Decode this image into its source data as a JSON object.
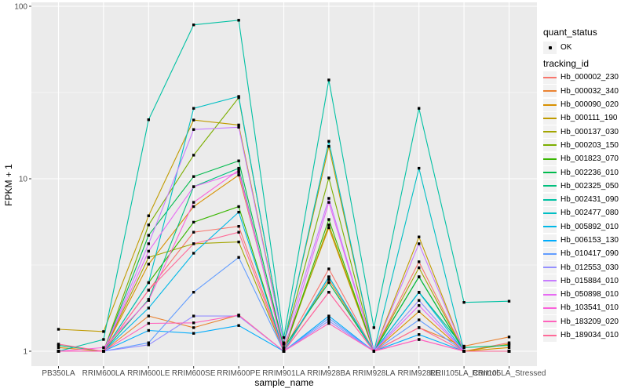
{
  "figure": {
    "background": "#FFFFFF",
    "panel_background": "#EBEBEB",
    "grid_color": "#FFFFFF",
    "point_color": "#000000",
    "axis_text_color": "#4D4D4D",
    "tick_color": "#333333"
  },
  "legend": {
    "quant_status_title": "quant_status",
    "quant_status_items": [
      {
        "label": "OK",
        "symbol": "black-point"
      }
    ],
    "tracking_id_title": "tracking_id"
  },
  "chart_data": {
    "type": "line",
    "title": "",
    "xlabel": "sample_name",
    "ylabel": "FPKM + 1",
    "y_scale": "log10",
    "ylim": [
      1,
      100
    ],
    "y_ticks": [
      1,
      10,
      100
    ],
    "y_minor_ticks": [
      3.162,
      31.62
    ],
    "grid": true,
    "legend_position": "right",
    "point_shape": "filled-square",
    "categories": [
      "PB350LA",
      "RRIM600LA",
      "RRIM600LE",
      "RRIM600SE",
      "RRIM600PE",
      "RRIM901LA",
      "RRIM928BA",
      "RRIM928LA",
      "RRIM928LE",
      "RRII105LA_Control",
      "RRII105LA_Stressed"
    ],
    "series": [
      {
        "name": "Hb_000002_230",
        "color": "#F8766D",
        "values": [
          1,
          1,
          2.26,
          4.9,
          5.3,
          1.02,
          3.0,
          1,
          3.3,
          1,
          1.12
        ]
      },
      {
        "name": "Hb_000032_340",
        "color": "#EA8331",
        "values": [
          1,
          1,
          1.6,
          1.37,
          1.62,
          1,
          2.6,
          1,
          1.37,
          1.07,
          1.21
        ]
      },
      {
        "name": "Hb_000090_020",
        "color": "#D89000",
        "values": [
          1.05,
          1,
          3.2,
          6.9,
          10.5,
          1.05,
          5.2,
          1,
          1.7,
          1,
          1.05
        ]
      },
      {
        "name": "Hb_000111_190",
        "color": "#C09B00",
        "values": [
          1.34,
          1.3,
          6.1,
          21.9,
          20.5,
          1.12,
          15.4,
          1,
          4.6,
          1,
          1.1
        ]
      },
      {
        "name": "Hb_000137_030",
        "color": "#A3A500",
        "values": [
          1,
          1,
          3.5,
          4.2,
          4.3,
          1,
          5.4,
          1,
          3.05,
          1,
          1
        ]
      },
      {
        "name": "Hb_000203_150",
        "color": "#7CAE00",
        "values": [
          1,
          1,
          5.4,
          13.7,
          29.5,
          1.1,
          10.1,
          1,
          2.7,
          1,
          1
        ]
      },
      {
        "name": "Hb_001823_070",
        "color": "#39B600",
        "values": [
          1,
          1,
          2.5,
          5.6,
          6.9,
          1,
          5.8,
          1,
          2.7,
          1,
          1
        ]
      },
      {
        "name": "Hb_002236_010",
        "color": "#00BB4E",
        "values": [
          1,
          1,
          4.7,
          10.3,
          12.7,
          1.05,
          2.5,
          1,
          2.7,
          1,
          1
        ]
      },
      {
        "name": "Hb_002325_050",
        "color": "#00BF7D",
        "values": [
          1.08,
          1,
          2.0,
          9.0,
          11.5,
          1,
          2.7,
          1,
          2.2,
          1.05,
          1.08
        ]
      },
      {
        "name": "Hb_002431_090",
        "color": "#00C1A3",
        "values": [
          1,
          1.17,
          22,
          78,
          83,
          1.2,
          37.4,
          1.37,
          25.6,
          1.92,
          1.95
        ]
      },
      {
        "name": "Hb_002477_080",
        "color": "#00BFC4",
        "values": [
          1,
          1,
          2.5,
          25.6,
          30,
          1.1,
          16.5,
          1,
          11.5,
          1,
          1
        ]
      },
      {
        "name": "Hb_005892_010",
        "color": "#00B8E7",
        "values": [
          1,
          1,
          1.78,
          3.7,
          6.4,
          1,
          2.7,
          1,
          2.19,
          1,
          1
        ]
      },
      {
        "name": "Hb_006153_130",
        "color": "#00ACFC",
        "values": [
          1,
          1,
          1.32,
          1.27,
          1.41,
          1,
          1.6,
          1,
          1.25,
          1,
          1
        ]
      },
      {
        "name": "Hb_010417_090",
        "color": "#619CFF",
        "values": [
          1,
          1,
          1.12,
          2.2,
          3.5,
          1,
          1.55,
          1,
          1.52,
          1,
          1
        ]
      },
      {
        "name": "Hb_012553_030",
        "color": "#9590FF",
        "values": [
          1,
          1,
          1.09,
          1.6,
          1.6,
          1,
          1.5,
          1,
          1.97,
          1,
          1
        ]
      },
      {
        "name": "Hb_015884_010",
        "color": "#C77CFF",
        "values": [
          1,
          1,
          4.2,
          19.3,
          19.9,
          1.1,
          7.7,
          1,
          4.2,
          1,
          1
        ]
      },
      {
        "name": "Hb_050898_010",
        "color": "#E76BF3",
        "values": [
          1,
          1,
          3.8,
          9.0,
          10.9,
          1,
          7.3,
          1,
          1.84,
          1,
          1
        ]
      },
      {
        "name": "Hb_103541_010",
        "color": "#FA62DB",
        "values": [
          1,
          1.05,
          1.97,
          7.3,
          11.2,
          1,
          2.2,
          1,
          1.17,
          1,
          1
        ]
      },
      {
        "name": "Hb_183209_020",
        "color": "#FF62BC",
        "values": [
          1,
          1,
          1.45,
          1.46,
          1.62,
          1,
          1.45,
          1,
          1.17,
          1,
          1
        ]
      },
      {
        "name": "Hb_189034_010",
        "color": "#FF6A98",
        "values": [
          1.1,
          1,
          2.26,
          4.2,
          4.9,
          1,
          2.2,
          1,
          1.37,
          1,
          1
        ]
      }
    ]
  }
}
